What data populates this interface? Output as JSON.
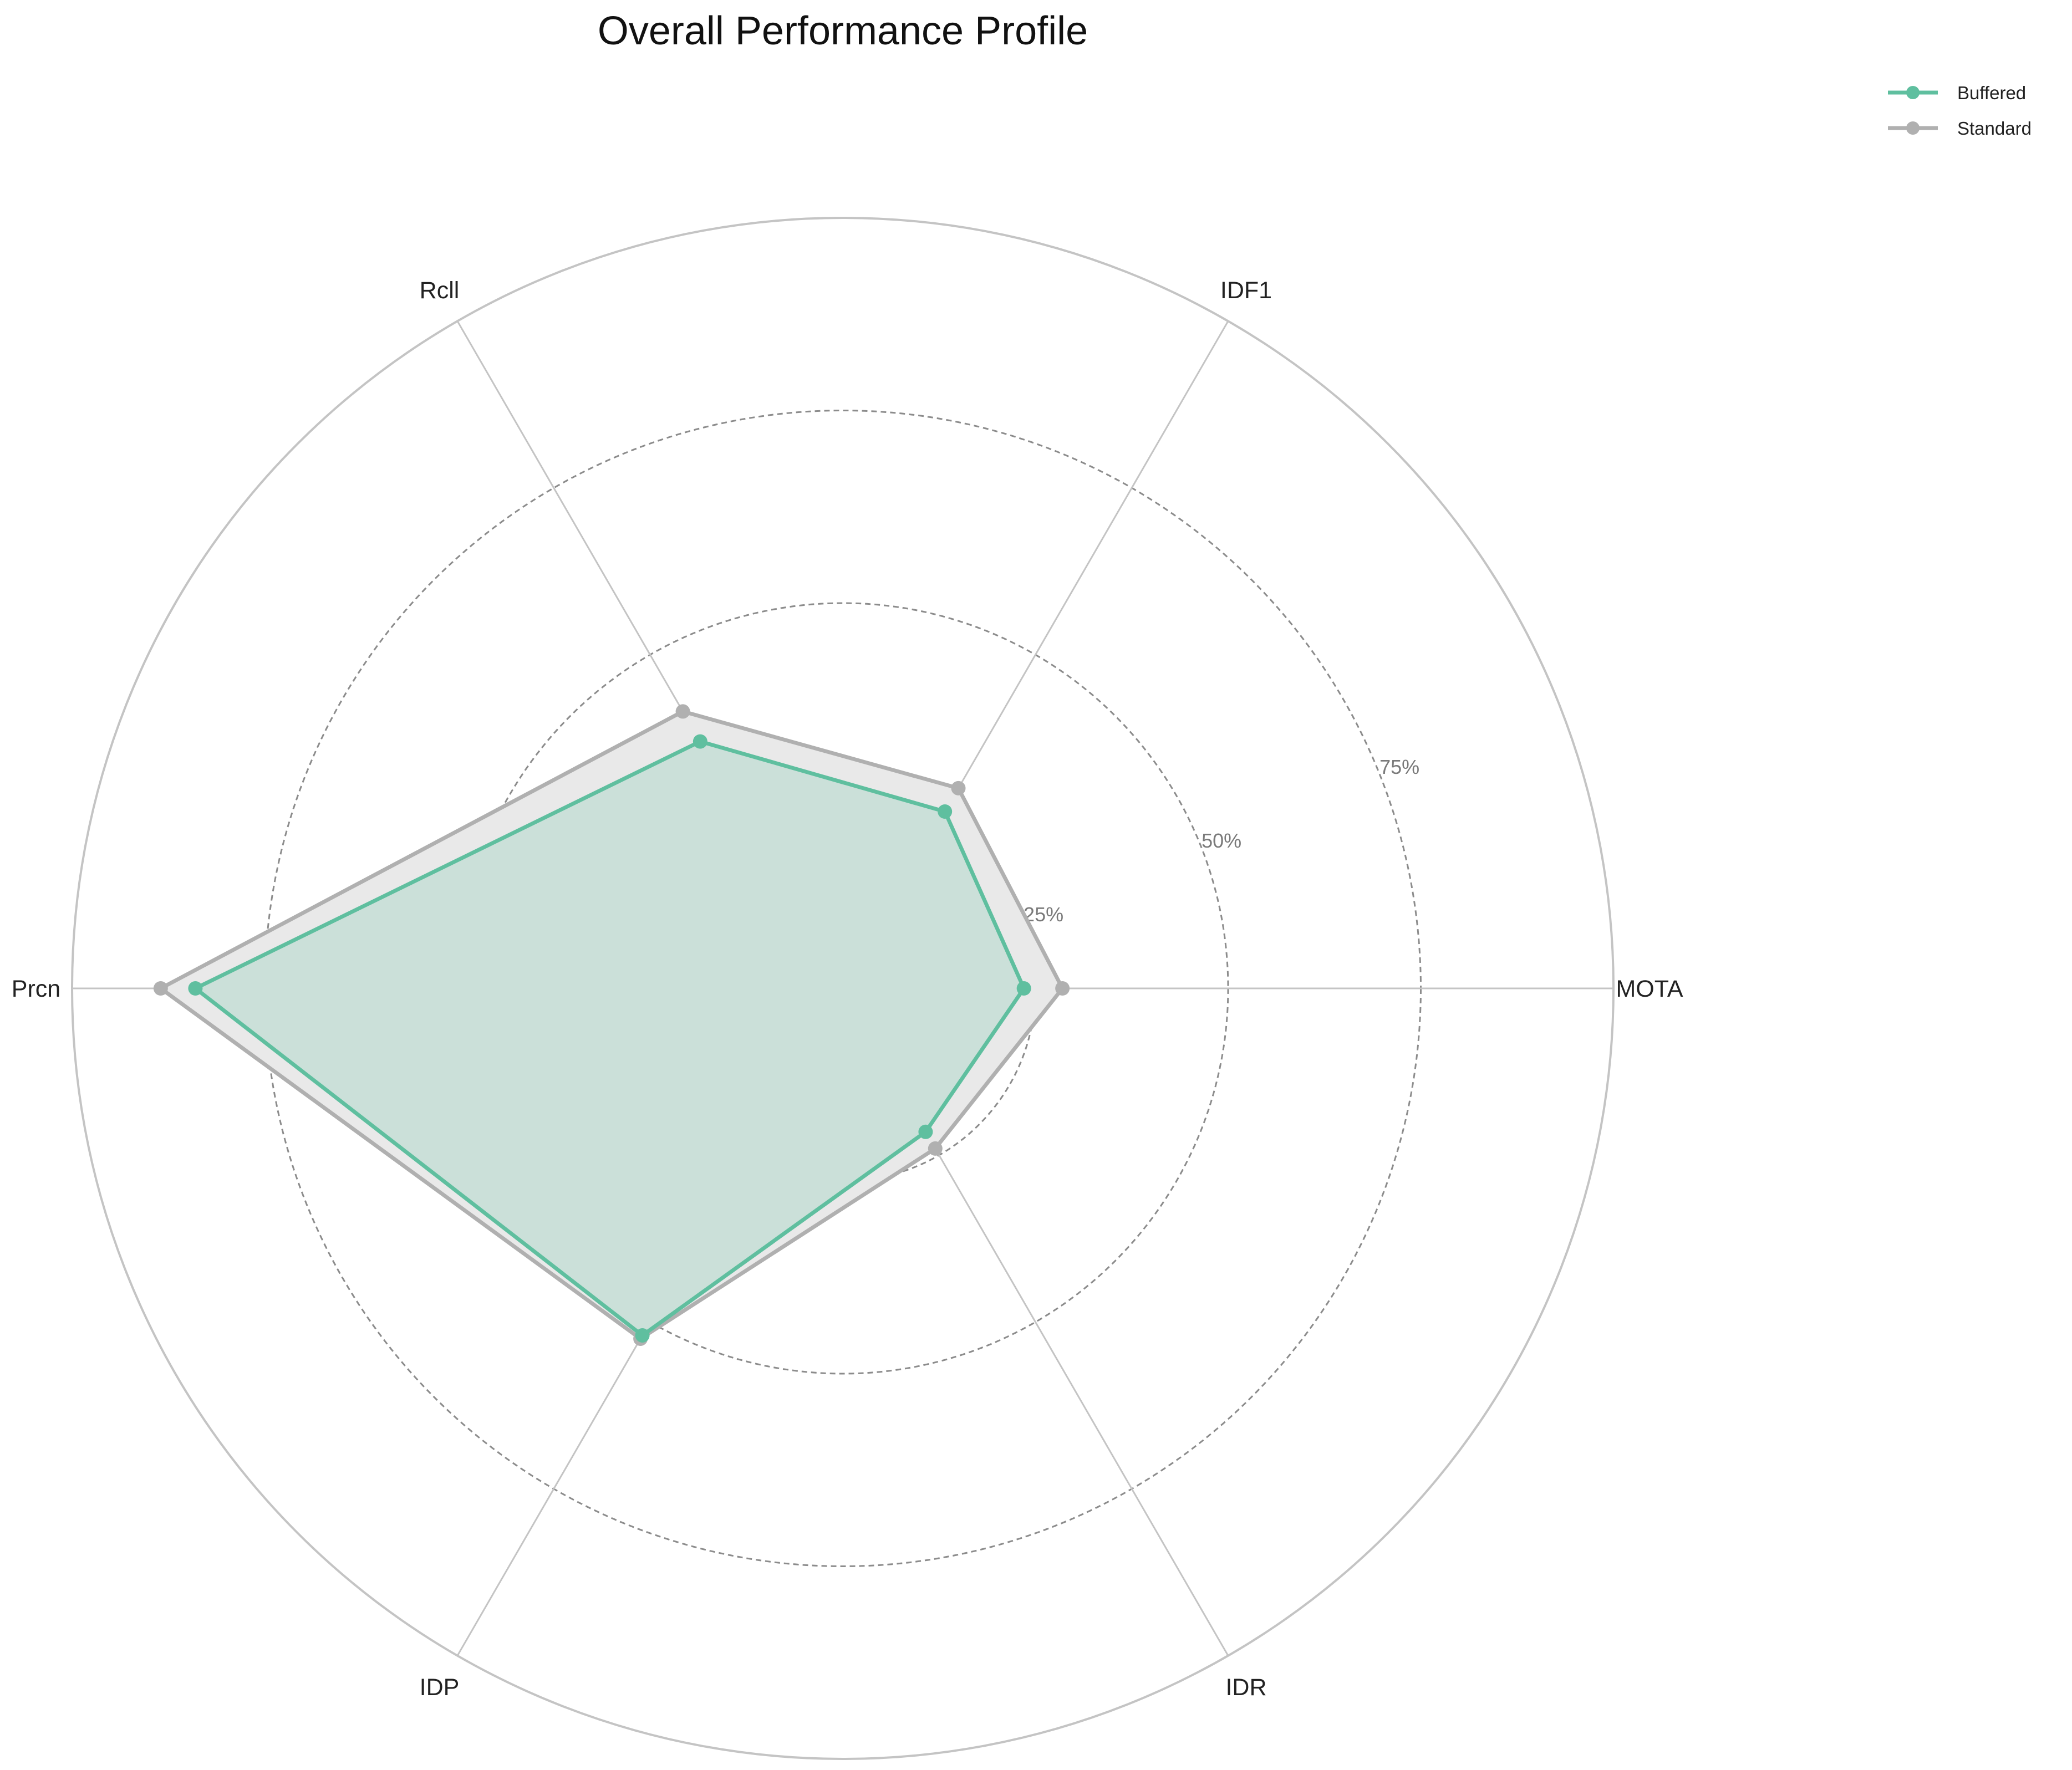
{
  "chart_data": {
    "type": "radar",
    "title": "Overall Performance Profile",
    "axes": [
      "MOTA",
      "IDF1",
      "Rcll",
      "Prcn",
      "IDP",
      "IDR"
    ],
    "rlim": [
      0,
      100
    ],
    "rticks": [
      25,
      50,
      75
    ],
    "rtick_labels": [
      "25%",
      "50%",
      "75%"
    ],
    "grid": true,
    "legend_position": "top-right",
    "series": [
      {
        "name": "Standard",
        "color": "#b0b0b0",
        "fill": "#e9e9e9",
        "values": [
          28.5,
          30.0,
          41.5,
          88.5,
          52.5,
          24.0
        ]
      },
      {
        "name": "Buffered",
        "color": "#5fbf9f",
        "fill": "#5fbf9f",
        "values": [
          23.5,
          26.5,
          37.0,
          84.0,
          52.0,
          21.5
        ]
      }
    ],
    "legend_entries": [
      {
        "name": "Buffered",
        "color": "#5fbf9f"
      },
      {
        "name": "Standard",
        "color": "#b0b0b0"
      }
    ]
  }
}
